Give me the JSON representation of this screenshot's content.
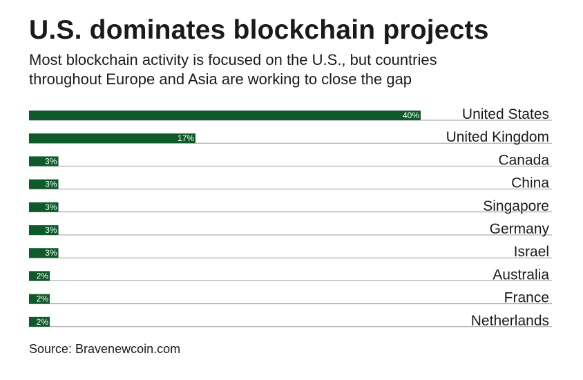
{
  "title": "U.S. dominates blockchain projects",
  "subtitle_lines": [
    "Most blockchain activity is focused on the U.S., but countries",
    "throughout Europe and Asia are working to close the gap"
  ],
  "source": "Source: Bravenewcoin.com",
  "colors": {
    "bar": "#0f5a2a",
    "rule": "#9a9a9a",
    "label": "#1a1a1a",
    "value_text": "#ffffff"
  },
  "chart_data": {
    "type": "bar",
    "orientation": "horizontal",
    "categories": [
      "United States",
      "United Kingdom",
      "Canada",
      "China",
      "Singapore",
      "Germany",
      "Israel",
      "Australia",
      "France",
      "Netherlands"
    ],
    "values": [
      40,
      17,
      3,
      3,
      3,
      3,
      3,
      2,
      2,
      2
    ],
    "value_labels": [
      "40%",
      "17%",
      "3%",
      "3%",
      "3%",
      "3%",
      "3%",
      "2%",
      "2%",
      "2%"
    ],
    "unit": "%",
    "xlim": [
      0,
      40
    ],
    "grid": false,
    "legend": "none"
  }
}
